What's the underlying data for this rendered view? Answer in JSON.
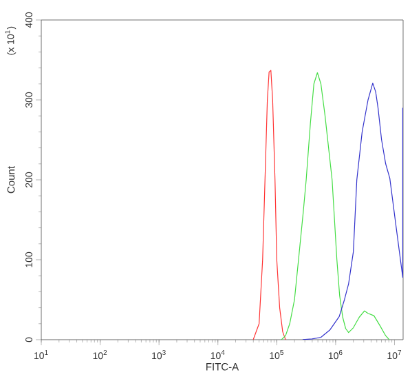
{
  "chart_data": {
    "type": "line",
    "xlabel": "FITC-A",
    "ylabel": "Count",
    "annotations": [
      "(x 10$^{1}$)"
    ],
    "log": "x",
    "grid": false,
    "marker": "none",
    "line_style": "solid",
    "xlim": [
      10,
      14000000
    ],
    "ylim": [
      0,
      400
    ],
    "xticks": [
      {
        "value": 10,
        "label": "10$^{1}$"
      },
      {
        "value": 100,
        "label": "10$^{2}$"
      },
      {
        "value": 1000,
        "label": "10$^{3}$"
      },
      {
        "value": 10000,
        "label": "10$^{4}$"
      },
      {
        "value": 100000,
        "label": "10$^{5}$"
      },
      {
        "value": 1000000,
        "label": "10$^{6}$"
      },
      {
        "value": 10000000,
        "label": "10$^{7}$"
      }
    ],
    "yticks": [
      0,
      100,
      200,
      300,
      400
    ],
    "series": [
      {
        "color": "#ff3333",
        "x": [
          39800,
          50100,
          57500,
          63100,
          69200,
          74100,
          79400,
          85100,
          93300,
          100000,
          112000,
          126000,
          141000
        ],
        "values": [
          0,
          20,
          100,
          200,
          300,
          335,
          337,
          300,
          200,
          100,
          40,
          10,
          0
        ]
      },
      {
        "color": "#44dd44",
        "x": [
          120000,
          141000,
          166000,
          200000,
          234000,
          282000,
          316000,
          372000,
          427000,
          490000,
          562000,
          661000,
          759000,
          871000,
          1050000,
          1170000,
          1320000,
          1480000,
          1660000,
          2000000,
          2510000,
          3090000,
          3550000,
          4470000,
          5620000,
          7080000,
          8130000
        ],
        "values": [
          0,
          5,
          20,
          50,
          100,
          160,
          200,
          270,
          320,
          334,
          320,
          280,
          240,
          200,
          100,
          55,
          28,
          14,
          9,
          15,
          28,
          36,
          33,
          30,
          18,
          5,
          0
        ]
      },
      {
        "color": "#3333cc",
        "x": [
          275000,
          398000,
          562000,
          794000,
          1150000,
          1410000,
          1660000,
          2000000,
          2290000,
          2820000,
          3550000,
          4270000,
          4790000,
          5250000,
          6030000,
          7080000,
          8320000,
          10700000,
          13800000,
          13800000
        ],
        "values": [
          0,
          1,
          3,
          12,
          29,
          50,
          70,
          110,
          200,
          260,
          300,
          321,
          310,
          290,
          250,
          220,
          202,
          140,
          78,
          290
        ]
      }
    ]
  }
}
